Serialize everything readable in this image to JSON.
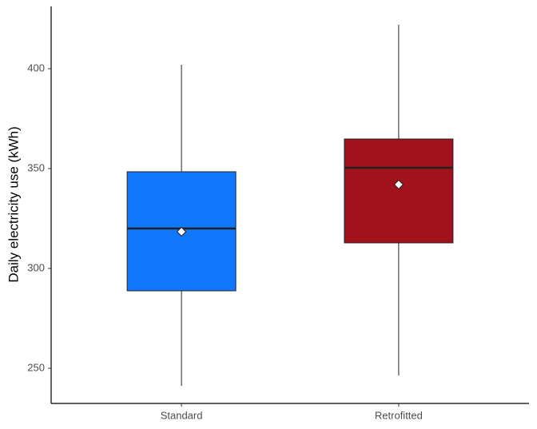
{
  "chart_data": {
    "type": "box",
    "y_label": "Daily electricity use (kWh)",
    "categories": [
      "Standard",
      "Retrofitted"
    ],
    "boxes": [
      {
        "min": 241.2,
        "q1": 288.8,
        "median": 320,
        "q3": 348.4,
        "max": 402,
        "mean": 318.4,
        "color": "#1177fc"
      },
      {
        "min": 246.4,
        "q1": 312.8,
        "median": 350.4,
        "q3": 364.8,
        "max": 422,
        "mean": 342,
        "color": "#a1121c"
      }
    ],
    "ylim": [
      232.4,
      431.2
    ],
    "yticks": [
      250,
      300,
      350,
      400
    ],
    "grid": false
  }
}
